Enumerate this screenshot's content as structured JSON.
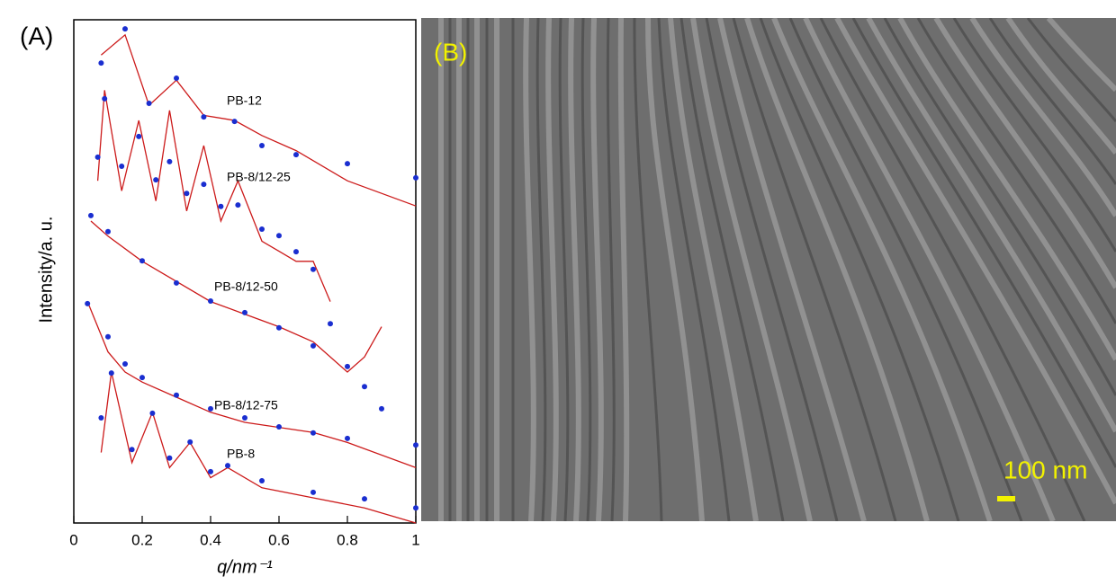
{
  "chart_data": {
    "type": "scatter",
    "panel_label": "(A)",
    "ylabel": "Intensity/a. u.",
    "xlabel": "q/nm⁻¹",
    "xlim": [
      0,
      1
    ],
    "xticks": [
      0,
      0.2,
      0.4,
      0.6,
      0.8,
      1
    ],
    "ylim": [
      0,
      100
    ],
    "series": [
      {
        "name": "PB-12",
        "color": "#1a2ed0",
        "fit_color": "#cc1a1a",
        "x": [
          0.08,
          0.15,
          0.22,
          0.3,
          0.38,
          0.47,
          0.55,
          0.65,
          0.8,
          1.0
        ],
        "values": [
          91.4,
          98.2,
          83.4,
          88.4,
          80.7,
          79.8,
          75,
          73.2,
          71.4,
          68.6
        ],
        "fit": [
          93,
          97,
          83,
          88,
          81,
          80,
          77,
          74,
          68,
          63
        ]
      },
      {
        "name": "PB-8/12-25",
        "color": "#1a2ed0",
        "fit_color": "#cc1a1a",
        "x": [
          0.07,
          0.09,
          0.14,
          0.19,
          0.24,
          0.28,
          0.33,
          0.38,
          0.43,
          0.48,
          0.55,
          0.6,
          0.65,
          0.7,
          0.75
        ],
        "values": [
          72.7,
          84.3,
          70.9,
          76.8,
          68.2,
          71.8,
          65.5,
          67.3,
          62.9,
          63.2,
          58.4,
          57.1,
          53.9,
          50.4,
          39.6
        ],
        "fit": [
          68,
          86,
          66,
          80,
          64,
          82,
          62,
          75,
          60,
          68,
          56,
          54,
          52,
          52,
          44
        ]
      },
      {
        "name": "PB-8/12-50",
        "color": "#1a2ed0",
        "fit_color": "#cc1a1a",
        "x": [
          0.05,
          0.1,
          0.2,
          0.3,
          0.4,
          0.5,
          0.6,
          0.7,
          0.8,
          0.85,
          0.9
        ],
        "values": [
          61.1,
          57.9,
          52.1,
          47.7,
          44.1,
          41.8,
          38.8,
          35.2,
          31.1,
          27.1,
          22.7
        ],
        "fit": [
          60,
          57,
          52,
          48,
          44,
          41.5,
          39,
          36,
          30,
          33,
          39
        ]
      },
      {
        "name": "PB-8/12-75",
        "color": "#1a2ed0",
        "fit_color": "#cc1a1a",
        "x": [
          0.04,
          0.1,
          0.15,
          0.2,
          0.3,
          0.4,
          0.5,
          0.6,
          0.7,
          0.8,
          1.0
        ],
        "values": [
          43.6,
          37,
          31.6,
          28.9,
          25.4,
          22.7,
          20.9,
          19.1,
          17.9,
          16.8,
          15.5
        ],
        "fit": [
          44,
          34,
          30,
          28,
          25,
          22,
          20,
          19,
          18,
          16,
          11
        ]
      },
      {
        "name": "PB-8",
        "color": "#1a2ed0",
        "fit_color": "#cc1a1a",
        "x": [
          0.08,
          0.11,
          0.17,
          0.23,
          0.28,
          0.34,
          0.4,
          0.45,
          0.55,
          0.7,
          0.85,
          1.0
        ],
        "values": [
          20.9,
          29.8,
          14.6,
          21.8,
          12.9,
          16.1,
          10.2,
          11.4,
          8.4,
          6.1,
          4.8,
          3.0
        ],
        "fit": [
          14,
          30,
          12,
          22,
          11,
          16,
          9,
          11,
          7,
          5,
          3,
          0
        ]
      }
    ]
  },
  "image_panel": {
    "panel_label": "(B)",
    "scale_bar": "100 nm"
  }
}
